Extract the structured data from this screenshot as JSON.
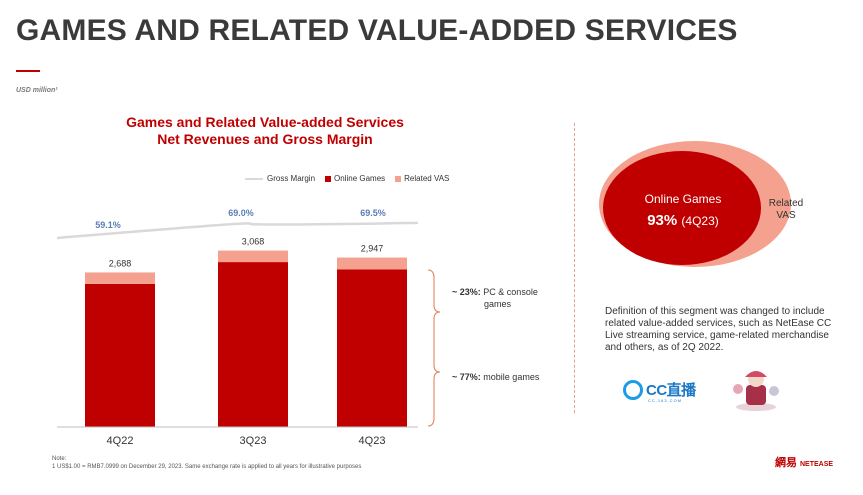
{
  "header": {
    "title": "GAMES AND RELATED VALUE-ADDED SERVICES",
    "unit_note": "USD million¹"
  },
  "colors": {
    "online_games": "#c00000",
    "related_vas": "#f4a28f",
    "gross_margin_line": "#d9d9d9",
    "margin_label": "#5b7db5"
  },
  "chart_data": {
    "type": "bar",
    "title_line1": "Games and Related Value-added Services",
    "title_line2": "Net Revenues and Gross Margin",
    "categories": [
      "4Q22",
      "3Q23",
      "4Q23"
    ],
    "totals": [
      "2,688",
      "3,068",
      "2,947"
    ],
    "total_values": [
      2688,
      3068,
      2947
    ],
    "series": [
      {
        "name": "Online Games",
        "values": [
          2488,
          2868,
          2742
        ]
      },
      {
        "name": "Related VAS",
        "values": [
          200,
          200,
          205
        ]
      }
    ],
    "line_series": {
      "name": "Gross Margin",
      "values": [
        59.1,
        69.0,
        69.5
      ],
      "labels": [
        "59.1%",
        "69.0%",
        "69.5%"
      ]
    },
    "legend": [
      "Gross Margin",
      "Online Games",
      "Related VAS"
    ],
    "ylim": [
      0,
      3500
    ],
    "grid": false,
    "legend_position": "top"
  },
  "brace_annotations": {
    "pc": {
      "pct": "~ 23%:",
      "text": "PC & console",
      "text2": "games"
    },
    "mobile": {
      "pct": "~ 77%:",
      "text": "mobile games"
    }
  },
  "venn": {
    "online_games_label": "Online Games",
    "online_games_pct": "93%",
    "online_games_period": "(4Q23)",
    "related_vas_line1": "Related",
    "related_vas_line2": "VAS"
  },
  "definition": "Definition of this segment was changed to include related value-added services, such as NetEase CC Live streaming service, game-related merchandise and others, as of 2Q 2022.",
  "cc_logo": {
    "text": "CC直播",
    "sub": "CC.163.COM"
  },
  "footnote": {
    "label": "Note:",
    "text": "1    US$1.00 = RMB7.0999 on December 29, 2023. Same exchange rate is applied to all years for illustrative purposes"
  },
  "brand": {
    "cn": "網易",
    "en": "NETEASE"
  }
}
